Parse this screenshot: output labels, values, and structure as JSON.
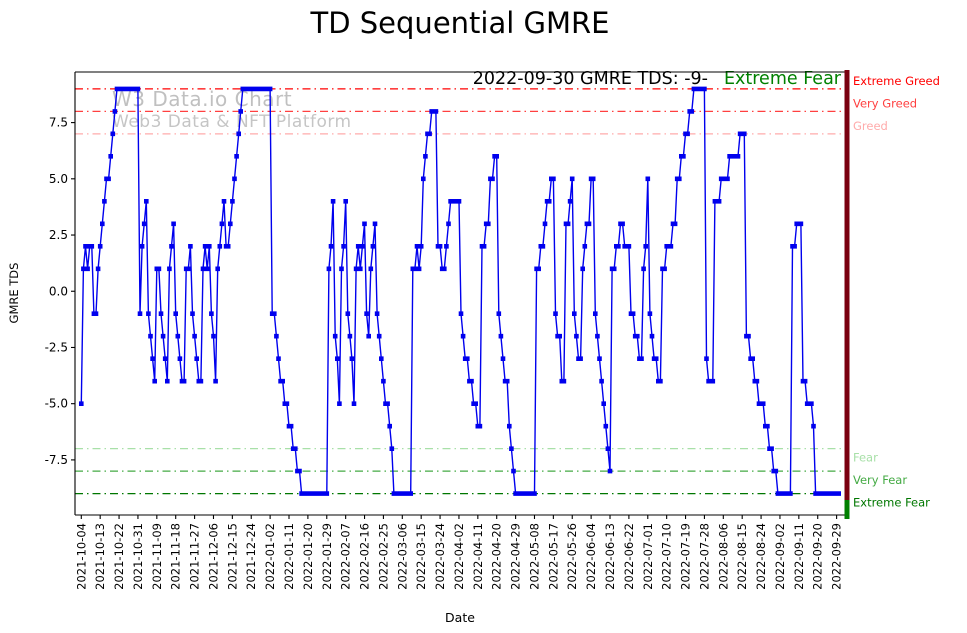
{
  "title": "TD Sequential GMRE",
  "annotation": {
    "text": "2022-09-30 GMRE TDS: -9-",
    "sentiment": "Extreme Fear",
    "sentiment_color": "#008000"
  },
  "watermark": {
    "line1": "W3 Data.io Chart",
    "line2": "Web3 Data & NFT Platform"
  },
  "chart_data": {
    "type": "line",
    "title": "TD Sequential GMRE",
    "xlabel": "Date",
    "ylabel": "GMRE TDS",
    "line_color": "#0000ee",
    "marker": "square",
    "x_start_date": "2021-10-04",
    "x_end_date": "2022-09-30",
    "ylim": [
      -9.95,
      9.75
    ],
    "y_tick_labels": [
      "7.5",
      "5.0",
      "2.5",
      "0.0",
      "-2.5",
      "-5.0",
      "-7.5"
    ],
    "y_tick_values": [
      7.5,
      5.0,
      2.5,
      0.0,
      -2.5,
      -5.0,
      -7.5
    ],
    "x_tick_labels": [
      "2021-10-04",
      "2021-10-13",
      "2021-10-22",
      "2021-10-31",
      "2021-11-09",
      "2021-11-18",
      "2021-11-27",
      "2021-12-06",
      "2021-12-15",
      "2021-12-24",
      "2022-01-02",
      "2022-01-11",
      "2022-01-20",
      "2022-01-29",
      "2022-02-07",
      "2022-02-16",
      "2022-02-25",
      "2022-03-06",
      "2022-03-15",
      "2022-03-24",
      "2022-04-02",
      "2022-04-11",
      "2022-04-20",
      "2022-04-29",
      "2022-05-08",
      "2022-05-17",
      "2022-05-26",
      "2022-06-04",
      "2022-06-13",
      "2022-06-22",
      "2022-07-01",
      "2022-07-10",
      "2022-07-19",
      "2022-07-28",
      "2022-08-06",
      "2022-08-15",
      "2022-08-24",
      "2022-09-02",
      "2022-09-11",
      "2022-09-20",
      "2022-09-29"
    ],
    "x_tick_step_days": 9,
    "values": [
      -5,
      1,
      2,
      1,
      2,
      2,
      -1,
      -1,
      1,
      2,
      3,
      4,
      5,
      5,
      6,
      7,
      8,
      9,
      9,
      9,
      9,
      9,
      9,
      9,
      9,
      9,
      9,
      9,
      -1,
      2,
      3,
      4,
      -1,
      -2,
      -3,
      -4,
      1,
      1,
      -1,
      -2,
      -3,
      -4,
      1,
      2,
      3,
      -1,
      -2,
      -3,
      -4,
      -4,
      1,
      1,
      2,
      -1,
      -2,
      -3,
      -4,
      -4,
      1,
      2,
      1,
      2,
      -1,
      -2,
      -4,
      1,
      2,
      3,
      4,
      2,
      2,
      3,
      4,
      5,
      6,
      7,
      8,
      9,
      9,
      9,
      9,
      9,
      9,
      9,
      9,
      9,
      9,
      9,
      9,
      9,
      9,
      -1,
      -1,
      -2,
      -3,
      -4,
      -4,
      -5,
      -5,
      -6,
      -6,
      -7,
      -7,
      -8,
      -8,
      -9,
      -9,
      -9,
      -9,
      -9,
      -9,
      -9,
      -9,
      -9,
      -9,
      -9,
      -9,
      -9,
      1,
      2,
      4,
      -2,
      -3,
      -5,
      1,
      2,
      4,
      -1,
      -2,
      -3,
      -5,
      1,
      2,
      1,
      2,
      3,
      -1,
      -2,
      1,
      2,
      3,
      -1,
      -2,
      -3,
      -4,
      -5,
      -5,
      -6,
      -7,
      -9,
      -9,
      -9,
      -9,
      -9,
      -9,
      -9,
      -9,
      -9,
      1,
      1,
      2,
      1,
      2,
      5,
      6,
      7,
      7,
      8,
      8,
      8,
      2,
      2,
      1,
      1,
      2,
      3,
      4,
      4,
      4,
      4,
      4,
      -1,
      -2,
      -3,
      -3,
      -4,
      -4,
      -5,
      -5,
      -6,
      -6,
      2,
      2,
      3,
      3,
      5,
      5,
      6,
      6,
      -1,
      -2,
      -3,
      -4,
      -4,
      -6,
      -7,
      -8,
      -9,
      -9,
      -9,
      -9,
      -9,
      -9,
      -9,
      -9,
      -9,
      -9,
      1,
      1,
      2,
      2,
      3,
      4,
      4,
      5,
      5,
      -1,
      -2,
      -2,
      -4,
      -4,
      3,
      3,
      4,
      5,
      -1,
      -2,
      -3,
      -3,
      1,
      2,
      3,
      3,
      5,
      5,
      -1,
      -2,
      -3,
      -4,
      -5,
      -6,
      -7,
      -8,
      1,
      1,
      2,
      2,
      3,
      3,
      2,
      2,
      2,
      -1,
      -1,
      -2,
      -2,
      -3,
      -3,
      1,
      2,
      5,
      -1,
      -2,
      -3,
      -3,
      -4,
      -4,
      1,
      1,
      2,
      2,
      2,
      3,
      3,
      5,
      5,
      6,
      6,
      7,
      7,
      8,
      8,
      9,
      9,
      9,
      9,
      9,
      9,
      -3,
      -4,
      -4,
      -4,
      4,
      4,
      4,
      5,
      5,
      5,
      5,
      6,
      6,
      6,
      6,
      6,
      7,
      7,
      7,
      -2,
      -2,
      -3,
      -3,
      -4,
      -4,
      -5,
      -5,
      -5,
      -6,
      -6,
      -7,
      -7,
      -8,
      -8,
      -9,
      -9,
      -9,
      -9,
      -9,
      -9,
      -9,
      2,
      2,
      3,
      3,
      3,
      -4,
      -4,
      -5,
      -5,
      -5,
      -6,
      -9,
      -9,
      -9,
      -9,
      -9,
      -9,
      -9,
      -9,
      -9,
      -9,
      -9,
      -9
    ],
    "thresholds": [
      {
        "value": 9,
        "label": "Extreme Greed",
        "color": "#ff0000"
      },
      {
        "value": 8,
        "label": "Very Greed",
        "color": "#ff4040"
      },
      {
        "value": 7,
        "label": "Greed",
        "color": "#ffabab"
      },
      {
        "value": -7,
        "label": "Fear",
        "color": "#a8e0a8"
      },
      {
        "value": -8,
        "label": "Very Fear",
        "color": "#44aa44"
      },
      {
        "value": -9,
        "label": "Extreme Fear",
        "color": "#007700"
      }
    ],
    "right_bar_color": "#7a0010",
    "right_bar_tip_color": "#008000",
    "grid": false,
    "legend": "none"
  }
}
